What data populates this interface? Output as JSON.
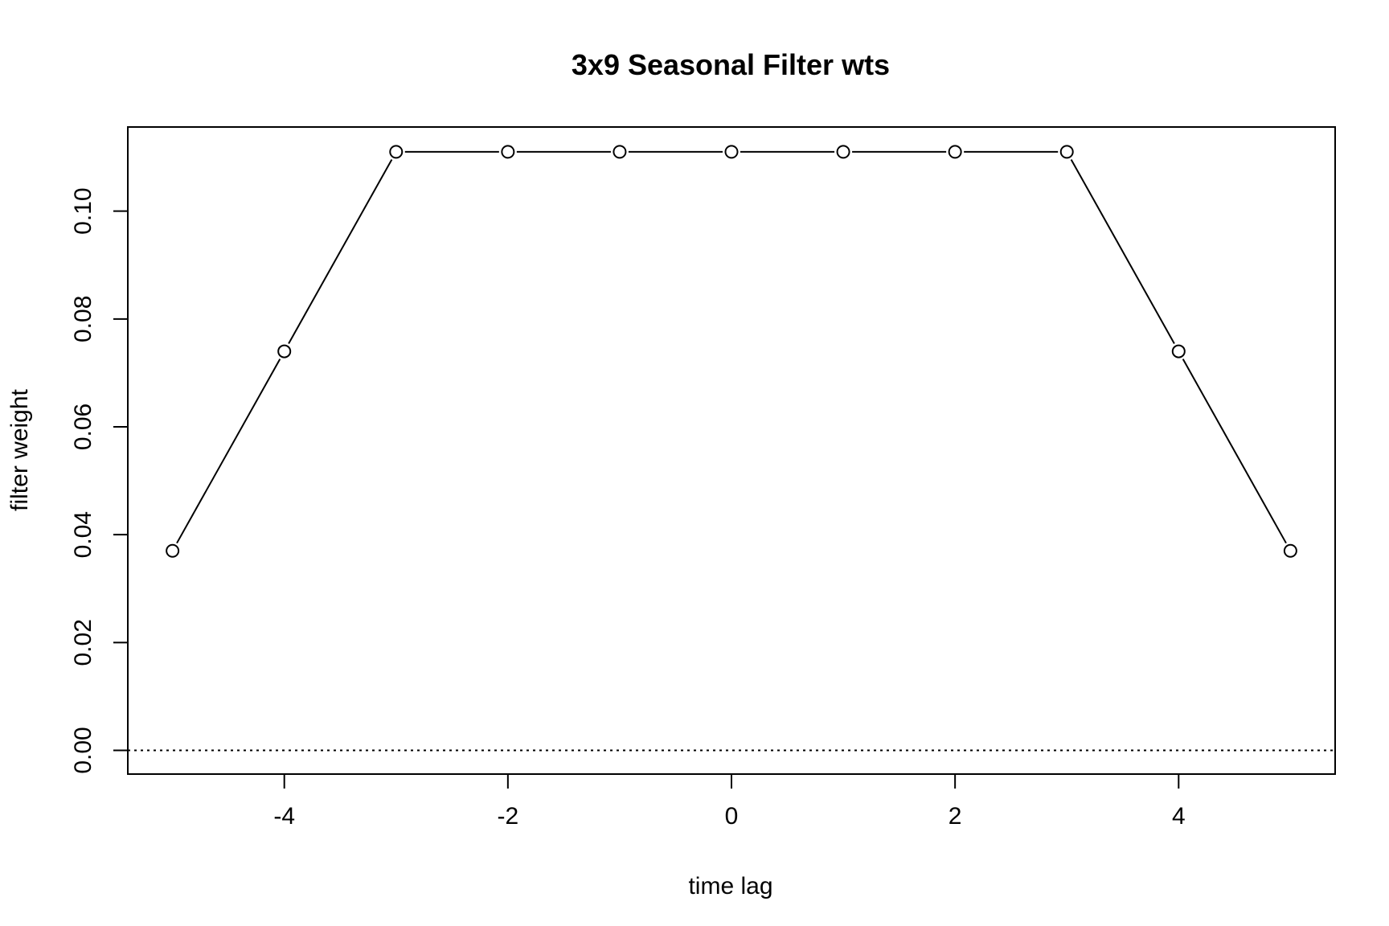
{
  "chart_data": {
    "type": "line",
    "title": "3x9 Seasonal Filter wts",
    "xlabel": "time lag",
    "ylabel": "filter weight",
    "xlim": [
      -5.4,
      5.4
    ],
    "ylim": [
      -0.0044,
      0.1156
    ],
    "x_ticks": [
      -4,
      -2,
      0,
      2,
      4
    ],
    "x_tick_labels": [
      "-4",
      "-2",
      "0",
      "2",
      "4"
    ],
    "y_ticks": [
      0.0,
      0.02,
      0.04,
      0.06,
      0.08,
      0.1
    ],
    "y_tick_labels": [
      "0.00",
      "0.02",
      "0.04",
      "0.06",
      "0.08",
      "0.10"
    ],
    "grid": false,
    "reference_line": {
      "y": 0,
      "style": "dotted"
    },
    "marker": "open-circle",
    "x": [
      -5,
      -4,
      -3,
      -2,
      -1,
      0,
      1,
      2,
      3,
      4,
      5
    ],
    "series": [
      {
        "values": [
          0.037,
          0.074,
          0.111,
          0.111,
          0.111,
          0.111,
          0.111,
          0.111,
          0.111,
          0.074,
          0.037
        ]
      }
    ],
    "colors": {
      "line": "#000000",
      "marker_fill": "#ffffff",
      "axis": "#000000"
    }
  }
}
